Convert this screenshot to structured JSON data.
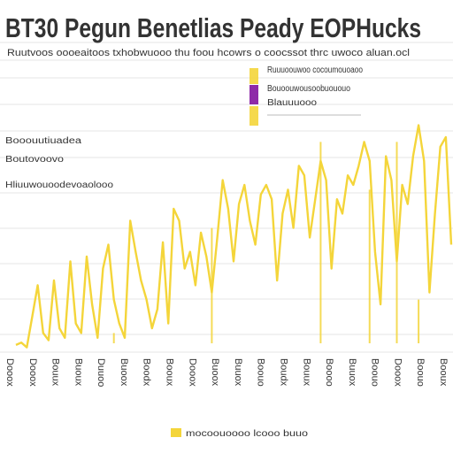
{
  "chart_data": {
    "type": "line",
    "title": "BT30 Pegun Benetlias Peady EOPHucks",
    "subtitle": "Ruutvoos oooeaitoos txhobwuooo thu foou hcowrs o coocssot thrc uwoco aluan.ocl",
    "side_labels": [
      "Booouutiuadea",
      "Boutovoovo",
      "Hliuuwouoodevoaolooo"
    ],
    "legend": [
      {
        "label": "Ruuuoouwoo cocoumouoaoo",
        "color": "#f4d53a"
      },
      {
        "label": "Bouoouwousoobuououo",
        "color": "#8e2aa8"
      },
      {
        "label": "Blauuuooo",
        "color": "#f4d53a"
      }
    ],
    "x_tick_labels": [
      "Dooox",
      "Dooox",
      "Bouux",
      "Buoux",
      "Duuoo",
      "Buoox",
      "Boodx",
      "Booux",
      "Dooox",
      "Buoox",
      "Buuox",
      "Boouo",
      "Boudx",
      "Bouux",
      "Boooo",
      "Buuox",
      "Boouo",
      "Dooox",
      "Boouo",
      "Booux"
    ],
    "xlabel": "mocoouoooo lcooo buuo",
    "ylim": [
      0,
      100
    ],
    "grid": true,
    "series": [
      {
        "color": "#f4d53a",
        "x": [
          0,
          3,
          6,
          9,
          12,
          15,
          18,
          21,
          24,
          27,
          30,
          33,
          36,
          39,
          42,
          45,
          48,
          51,
          54,
          57,
          60,
          63,
          66,
          69,
          72,
          75,
          78,
          81,
          84,
          87,
          90,
          93,
          96,
          99,
          102,
          105,
          108,
          111,
          114,
          117,
          120,
          123,
          126,
          129,
          132,
          135,
          138,
          141,
          144,
          147,
          150,
          153,
          156,
          159,
          162,
          165,
          168,
          171,
          174,
          177,
          180,
          183,
          186,
          189,
          192,
          195,
          198,
          201,
          204,
          207,
          210,
          213,
          216,
          219,
          222,
          225,
          228,
          231,
          234,
          237,
          240
        ],
        "values": [
          3,
          4,
          2,
          15,
          28,
          8,
          5,
          30,
          10,
          6,
          38,
          12,
          8,
          40,
          20,
          6,
          35,
          45,
          22,
          12,
          6,
          55,
          42,
          30,
          22,
          10,
          18,
          46,
          12,
          60,
          55,
          35,
          42,
          28,
          50,
          40,
          25,
          48,
          72,
          60,
          38,
          62,
          70,
          55,
          45,
          66,
          70,
          64,
          30,
          58,
          68,
          52,
          78,
          74,
          48,
          64,
          80,
          72,
          35,
          64,
          58,
          74,
          70,
          78,
          88,
          80,
          42,
          20,
          82,
          72,
          38,
          70,
          62,
          82,
          95,
          80,
          25,
          58,
          86,
          90,
          45
        ]
      }
    ],
    "spikes": [
      {
        "x": 54,
        "value": 8
      },
      {
        "x": 108,
        "value": 52
      },
      {
        "x": 168,
        "value": 88
      },
      {
        "x": 195,
        "value": 68
      },
      {
        "x": 210,
        "value": 88
      },
      {
        "x": 222,
        "value": 22
      }
    ]
  }
}
